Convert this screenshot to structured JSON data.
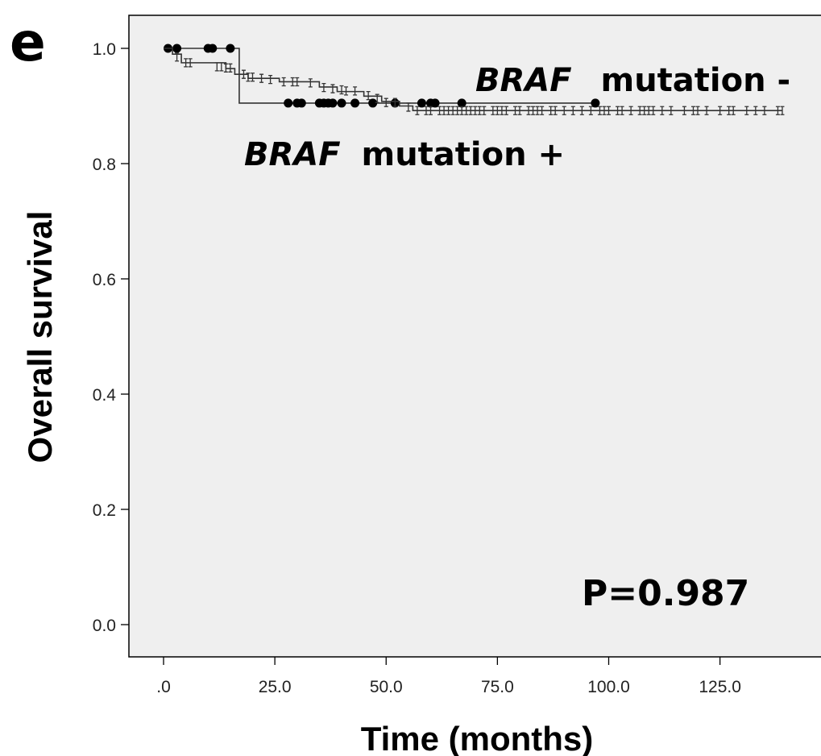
{
  "panel_label": "e",
  "chart_data": {
    "type": "line",
    "subtype": "kaplan-meier",
    "xlabel": "Time (months)",
    "ylabel": "Overall survival",
    "xlim": [
      0,
      140
    ],
    "ylim": [
      0,
      1.05
    ],
    "xticks": [
      0,
      25,
      50,
      75,
      100,
      125
    ],
    "xtick_labels": [
      ".0",
      "25.0",
      "50.0",
      "75.0",
      "100.0",
      "125.0"
    ],
    "yticks": [
      0,
      0.2,
      0.4,
      0.6,
      0.8,
      1.0
    ],
    "ytick_labels": [
      "0.0",
      "0.2",
      "0.4",
      "0.6",
      "0.8",
      "1.0"
    ],
    "grid": false,
    "background": "#efefef",
    "annotations": [
      {
        "italic": "BRAF",
        "rest": "mutation -",
        "series": "BRAF mutation -"
      },
      {
        "italic": "BRAF",
        "rest": "mutation +",
        "series": "BRAF mutation +"
      }
    ],
    "p_value_text": "P=0.987",
    "series": [
      {
        "name": "BRAF mutation +",
        "censor_marker": "filled-circle",
        "steps": [
          [
            0,
            1.0
          ],
          [
            17,
            0.905
          ]
        ],
        "end_x": 97,
        "censored": [
          [
            1,
            1.0
          ],
          [
            3,
            1.0
          ],
          [
            10,
            1.0
          ],
          [
            11,
            1.0
          ],
          [
            15,
            1.0
          ],
          [
            28,
            0.905
          ],
          [
            30,
            0.905
          ],
          [
            31,
            0.905
          ],
          [
            35,
            0.905
          ],
          [
            36,
            0.905
          ],
          [
            37,
            0.905
          ],
          [
            38,
            0.905
          ],
          [
            40,
            0.905
          ],
          [
            43,
            0.905
          ],
          [
            47,
            0.905
          ],
          [
            52,
            0.905
          ],
          [
            58,
            0.905
          ],
          [
            60,
            0.905
          ],
          [
            61,
            0.905
          ],
          [
            67,
            0.905
          ],
          [
            97,
            0.905
          ]
        ]
      },
      {
        "name": "BRAF mutation -",
        "censor_marker": "tick",
        "steps": [
          [
            0,
            1.0
          ],
          [
            2,
            0.99
          ],
          [
            4,
            0.975
          ],
          [
            14,
            0.965
          ],
          [
            16,
            0.955
          ],
          [
            19,
            0.948
          ],
          [
            26,
            0.942
          ],
          [
            35,
            0.933
          ],
          [
            39,
            0.925
          ],
          [
            45,
            0.917
          ],
          [
            49,
            0.908
          ],
          [
            53,
            0.9
          ],
          [
            56,
            0.892
          ]
        ],
        "end_x": 139,
        "censored": [
          [
            3,
            0.985
          ],
          [
            5,
            0.975
          ],
          [
            6,
            0.975
          ],
          [
            12,
            0.968
          ],
          [
            13,
            0.968
          ],
          [
            14,
            0.966
          ],
          [
            15,
            0.966
          ],
          [
            18,
            0.955
          ],
          [
            19,
            0.95
          ],
          [
            20,
            0.95
          ],
          [
            22,
            0.948
          ],
          [
            24,
            0.946
          ],
          [
            27,
            0.942
          ],
          [
            29,
            0.942
          ],
          [
            30,
            0.942
          ],
          [
            33,
            0.94
          ],
          [
            36,
            0.932
          ],
          [
            38,
            0.93
          ],
          [
            40,
            0.928
          ],
          [
            41,
            0.926
          ],
          [
            43,
            0.926
          ],
          [
            46,
            0.918
          ],
          [
            48,
            0.913
          ],
          [
            50,
            0.906
          ],
          [
            52,
            0.906
          ],
          [
            55,
            0.898
          ],
          [
            57,
            0.892
          ],
          [
            59,
            0.892
          ],
          [
            60,
            0.892
          ],
          [
            62,
            0.892
          ],
          [
            63,
            0.892
          ],
          [
            64,
            0.892
          ],
          [
            65,
            0.892
          ],
          [
            66,
            0.892
          ],
          [
            67,
            0.892
          ],
          [
            68,
            0.892
          ],
          [
            69,
            0.892
          ],
          [
            70,
            0.892
          ],
          [
            71,
            0.892
          ],
          [
            72,
            0.892
          ],
          [
            74,
            0.892
          ],
          [
            75,
            0.892
          ],
          [
            76,
            0.892
          ],
          [
            77,
            0.892
          ],
          [
            79,
            0.892
          ],
          [
            80,
            0.892
          ],
          [
            82,
            0.892
          ],
          [
            83,
            0.892
          ],
          [
            84,
            0.892
          ],
          [
            85,
            0.892
          ],
          [
            87,
            0.892
          ],
          [
            88,
            0.892
          ],
          [
            90,
            0.892
          ],
          [
            92,
            0.892
          ],
          [
            94,
            0.892
          ],
          [
            96,
            0.892
          ],
          [
            98,
            0.892
          ],
          [
            99,
            0.892
          ],
          [
            100,
            0.892
          ],
          [
            102,
            0.892
          ],
          [
            103,
            0.892
          ],
          [
            105,
            0.892
          ],
          [
            107,
            0.892
          ],
          [
            108,
            0.892
          ],
          [
            109,
            0.892
          ],
          [
            110,
            0.892
          ],
          [
            112,
            0.892
          ],
          [
            114,
            0.892
          ],
          [
            117,
            0.892
          ],
          [
            119,
            0.892
          ],
          [
            120,
            0.892
          ],
          [
            122,
            0.892
          ],
          [
            125,
            0.892
          ],
          [
            127,
            0.892
          ],
          [
            128,
            0.892
          ],
          [
            131,
            0.892
          ],
          [
            133,
            0.892
          ],
          [
            135,
            0.892
          ],
          [
            138,
            0.892
          ],
          [
            139,
            0.892
          ]
        ]
      }
    ]
  }
}
